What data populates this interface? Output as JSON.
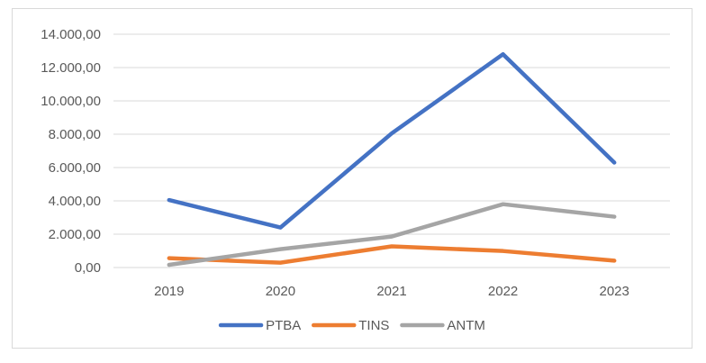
{
  "chart_data": {
    "type": "line",
    "categories": [
      "2019",
      "2020",
      "2021",
      "2022",
      "2023"
    ],
    "series": [
      {
        "name": "PTBA",
        "color": "#4472c4",
        "values": [
          4050,
          2400,
          8050,
          12800,
          6300
        ]
      },
      {
        "name": "TINS",
        "color": "#ed7d31",
        "values": [
          560,
          290,
          1270,
          990,
          410
        ]
      },
      {
        "name": "ANTM",
        "color": "#a5a5a5",
        "values": [
          160,
          1100,
          1860,
          3800,
          3050
        ]
      }
    ],
    "ylim": [
      0,
      14000
    ],
    "y_ticks": [
      0,
      2000,
      4000,
      6000,
      8000,
      10000,
      12000,
      14000
    ],
    "y_tick_labels": [
      "0,00",
      "2.000,00",
      "4.000,00",
      "6.000,00",
      "8.000,00",
      "10.000,00",
      "12.000,00",
      "14.000,00"
    ],
    "grid": true,
    "legend_position": "bottom",
    "title": "",
    "xlabel": "",
    "ylabel": ""
  }
}
